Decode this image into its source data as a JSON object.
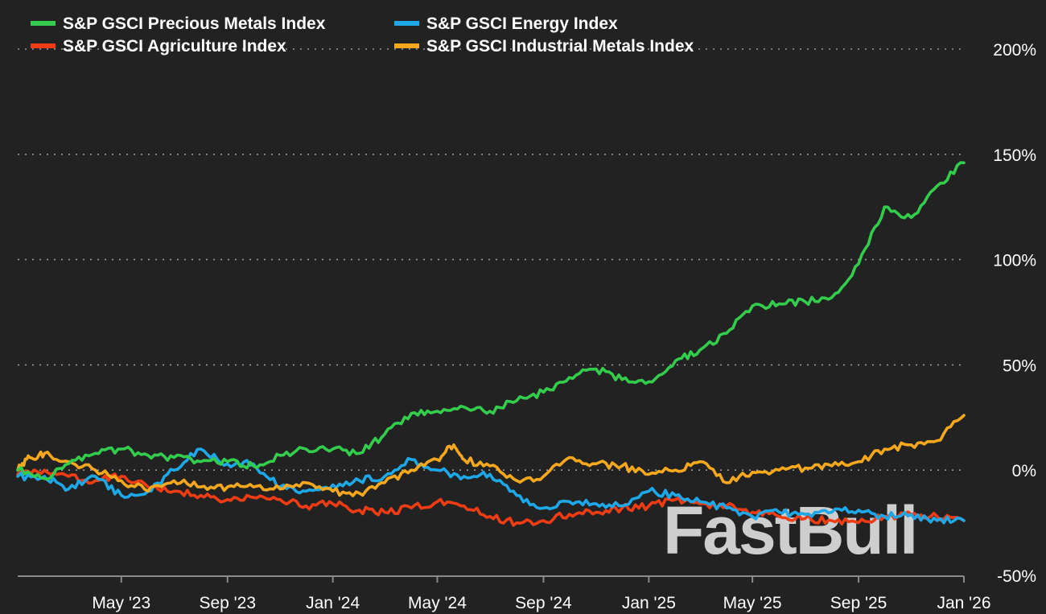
{
  "chart_data": {
    "type": "line",
    "y_tick_labels": [
      "200%",
      "150%",
      "100%",
      "50%",
      "0%",
      "-50%"
    ],
    "y_ticks": [
      200,
      150,
      100,
      50,
      0,
      -50
    ],
    "ylim": [
      -50,
      200
    ],
    "x_tick_labels": [
      "May '23",
      "Sep '23",
      "Jan '24",
      "May '24",
      "Sep '24",
      "Jan '25",
      "May '25",
      "Sep '25",
      "Jan '26"
    ],
    "x_ticks": [
      "2023-05-01",
      "2023-09-01",
      "2024-01-01",
      "2024-05-01",
      "2024-09-01",
      "2025-01-01",
      "2025-05-01",
      "2025-09-01",
      "2026-01-01"
    ],
    "xlim": [
      "2023-01-01",
      "2026-01-01"
    ],
    "grid": "horizontal dotted",
    "legend_position": "top-left",
    "series": [
      {
        "name": "S&P GSCI Precious Metals Index",
        "color": "#33cc4d",
        "points": [
          [
            "2023-01-01",
            0
          ],
          [
            "2023-02-01",
            -4
          ],
          [
            "2023-03-01",
            3
          ],
          [
            "2023-04-01",
            8
          ],
          [
            "2023-05-01",
            10
          ],
          [
            "2023-06-01",
            7
          ],
          [
            "2023-07-01",
            6
          ],
          [
            "2023-08-01",
            4
          ],
          [
            "2023-09-01",
            4
          ],
          [
            "2023-10-01",
            2
          ],
          [
            "2023-11-01",
            7
          ],
          [
            "2023-12-01",
            10
          ],
          [
            "2024-01-01",
            10
          ],
          [
            "2024-02-01",
            8
          ],
          [
            "2024-03-01",
            17
          ],
          [
            "2024-04-01",
            27
          ],
          [
            "2024-05-01",
            28
          ],
          [
            "2024-06-01",
            30
          ],
          [
            "2024-07-01",
            28
          ],
          [
            "2024-08-01",
            33
          ],
          [
            "2024-09-01",
            37
          ],
          [
            "2024-10-01",
            44
          ],
          [
            "2024-11-01",
            48
          ],
          [
            "2024-12-01",
            43
          ],
          [
            "2025-01-01",
            42
          ],
          [
            "2025-02-01",
            52
          ],
          [
            "2025-03-01",
            57
          ],
          [
            "2025-04-01",
            65
          ],
          [
            "2025-05-01",
            78
          ],
          [
            "2025-06-01",
            79
          ],
          [
            "2025-07-01",
            80
          ],
          [
            "2025-08-01",
            82
          ],
          [
            "2025-09-01",
            98
          ],
          [
            "2025-10-01",
            125
          ],
          [
            "2025-11-01",
            120
          ],
          [
            "2025-12-01",
            135
          ],
          [
            "2026-01-01",
            146
          ]
        ]
      },
      {
        "name": "S&P GSCI Energy Index",
        "color": "#1ea8e8",
        "points": [
          [
            "2023-01-01",
            -3
          ],
          [
            "2023-02-01",
            -3
          ],
          [
            "2023-03-01",
            -9
          ],
          [
            "2023-04-01",
            -3
          ],
          [
            "2023-05-01",
            -12
          ],
          [
            "2023-06-01",
            -10
          ],
          [
            "2023-07-01",
            0
          ],
          [
            "2023-08-01",
            10
          ],
          [
            "2023-09-01",
            3
          ],
          [
            "2023-10-01",
            3
          ],
          [
            "2023-11-01",
            -8
          ],
          [
            "2023-12-01",
            -10
          ],
          [
            "2024-01-01",
            -7
          ],
          [
            "2024-02-01",
            -5
          ],
          [
            "2024-03-01",
            -3
          ],
          [
            "2024-04-01",
            5
          ],
          [
            "2024-05-01",
            0
          ],
          [
            "2024-06-01",
            -3
          ],
          [
            "2024-07-01",
            -2
          ],
          [
            "2024-08-01",
            -12
          ],
          [
            "2024-09-01",
            -18
          ],
          [
            "2024-10-01",
            -15
          ],
          [
            "2024-11-01",
            -16
          ],
          [
            "2024-12-01",
            -17
          ],
          [
            "2025-01-01",
            -10
          ],
          [
            "2025-02-01",
            -12
          ],
          [
            "2025-03-01",
            -15
          ],
          [
            "2025-04-01",
            -18
          ],
          [
            "2025-05-01",
            -22
          ],
          [
            "2025-06-01",
            -20
          ],
          [
            "2025-07-01",
            -21
          ],
          [
            "2025-08-01",
            -20
          ],
          [
            "2025-09-01",
            -19
          ],
          [
            "2025-10-01",
            -22
          ],
          [
            "2025-11-01",
            -21
          ],
          [
            "2025-12-01",
            -24
          ],
          [
            "2026-01-01",
            -24
          ]
        ]
      },
      {
        "name": "S&P GSCI Agriculture Index",
        "color": "#f03c14",
        "points": [
          [
            "2023-01-01",
            -2
          ],
          [
            "2023-02-01",
            0
          ],
          [
            "2023-03-01",
            -3
          ],
          [
            "2023-04-01",
            -5
          ],
          [
            "2023-05-01",
            -3
          ],
          [
            "2023-06-01",
            -8
          ],
          [
            "2023-07-01",
            -10
          ],
          [
            "2023-08-01",
            -12
          ],
          [
            "2023-09-01",
            -14
          ],
          [
            "2023-10-01",
            -13
          ],
          [
            "2023-11-01",
            -14
          ],
          [
            "2023-12-01",
            -17
          ],
          [
            "2024-01-01",
            -16
          ],
          [
            "2024-02-01",
            -19
          ],
          [
            "2024-03-01",
            -20
          ],
          [
            "2024-04-01",
            -18
          ],
          [
            "2024-05-01",
            -15
          ],
          [
            "2024-06-01",
            -17
          ],
          [
            "2024-07-01",
            -22
          ],
          [
            "2024-08-01",
            -25
          ],
          [
            "2024-09-01",
            -24
          ],
          [
            "2024-10-01",
            -21
          ],
          [
            "2024-11-01",
            -20
          ],
          [
            "2024-12-01",
            -18
          ],
          [
            "2025-01-01",
            -17
          ],
          [
            "2025-02-01",
            -14
          ],
          [
            "2025-03-01",
            -16
          ],
          [
            "2025-04-01",
            -17
          ],
          [
            "2025-05-01",
            -20
          ],
          [
            "2025-06-01",
            -22
          ],
          [
            "2025-07-01",
            -23
          ],
          [
            "2025-08-01",
            -24
          ],
          [
            "2025-09-01",
            -25
          ],
          [
            "2025-10-01",
            -22
          ],
          [
            "2025-11-01",
            -21
          ],
          [
            "2025-12-01",
            -22
          ],
          [
            "2026-01-01",
            -24
          ]
        ]
      },
      {
        "name": "S&P GSCI Industrial Metals Index",
        "color": "#f5a81e",
        "points": [
          [
            "2023-01-01",
            0
          ],
          [
            "2023-01-15",
            6
          ],
          [
            "2023-02-01",
            8
          ],
          [
            "2023-03-01",
            4
          ],
          [
            "2023-04-01",
            0
          ],
          [
            "2023-05-01",
            -5
          ],
          [
            "2023-06-01",
            -10
          ],
          [
            "2023-07-01",
            -5
          ],
          [
            "2023-08-01",
            -8
          ],
          [
            "2023-09-01",
            -8
          ],
          [
            "2023-10-01",
            -8
          ],
          [
            "2023-11-01",
            -9
          ],
          [
            "2023-12-01",
            -6
          ],
          [
            "2024-01-01",
            -10
          ],
          [
            "2024-02-01",
            -11
          ],
          [
            "2024-03-01",
            -6
          ],
          [
            "2024-04-01",
            0
          ],
          [
            "2024-05-01",
            5
          ],
          [
            "2024-05-20",
            12
          ],
          [
            "2024-06-01",
            5
          ],
          [
            "2024-07-01",
            2
          ],
          [
            "2024-08-01",
            -5
          ],
          [
            "2024-09-01",
            -3
          ],
          [
            "2024-10-01",
            6
          ],
          [
            "2024-11-01",
            3
          ],
          [
            "2024-12-01",
            2
          ],
          [
            "2025-01-01",
            -2
          ],
          [
            "2025-02-01",
            0
          ],
          [
            "2025-03-01",
            4
          ],
          [
            "2025-04-01",
            -6
          ],
          [
            "2025-05-01",
            -1
          ],
          [
            "2025-06-01",
            0
          ],
          [
            "2025-07-01",
            1
          ],
          [
            "2025-08-01",
            2
          ],
          [
            "2025-09-01",
            4
          ],
          [
            "2025-10-01",
            10
          ],
          [
            "2025-11-01",
            12
          ],
          [
            "2025-12-01",
            14
          ],
          [
            "2026-01-01",
            26
          ]
        ]
      }
    ]
  },
  "watermark": "FastBull"
}
